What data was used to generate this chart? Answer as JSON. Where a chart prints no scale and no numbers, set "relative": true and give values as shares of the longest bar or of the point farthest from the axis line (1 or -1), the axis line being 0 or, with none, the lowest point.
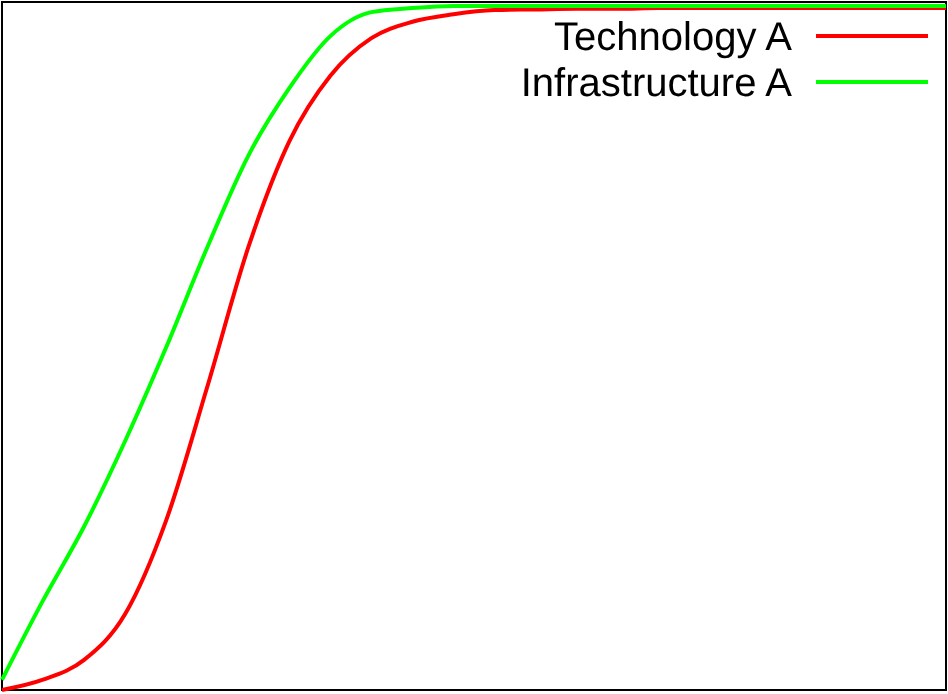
{
  "chart_data": {
    "type": "line",
    "relative": true,
    "legend": "top right",
    "line_style": "solid",
    "marker": "none",
    "categories": [
      null,
      null,
      null,
      null,
      null,
      null,
      null,
      null,
      null,
      null,
      null,
      null,
      null,
      null,
      null,
      null,
      null,
      null,
      null,
      null,
      null,
      null,
      null,
      null
    ],
    "series": [
      {
        "name": "Technology A",
        "color": "#ff0000",
        "values": [
          0,
          0.015,
          0.044,
          0.111,
          0.248,
          0.443,
          0.647,
          0.802,
          0.898,
          0.953,
          0.977,
          0.988,
          0.994,
          0.995,
          0.996,
          0.996,
          0.997,
          0.997,
          0.997,
          0.997,
          0.997,
          0.997,
          0.997,
          0.997
        ]
      },
      {
        "name": "Infrastructure A",
        "color": "#00ff00",
        "values": [
          0.015,
          0.131,
          0.239,
          0.364,
          0.501,
          0.647,
          0.781,
          0.88,
          0.956,
          0.991,
          0.997,
          1,
          1,
          1,
          1,
          1,
          1,
          1,
          1,
          1,
          1,
          1,
          1,
          1
        ]
      }
    ]
  }
}
